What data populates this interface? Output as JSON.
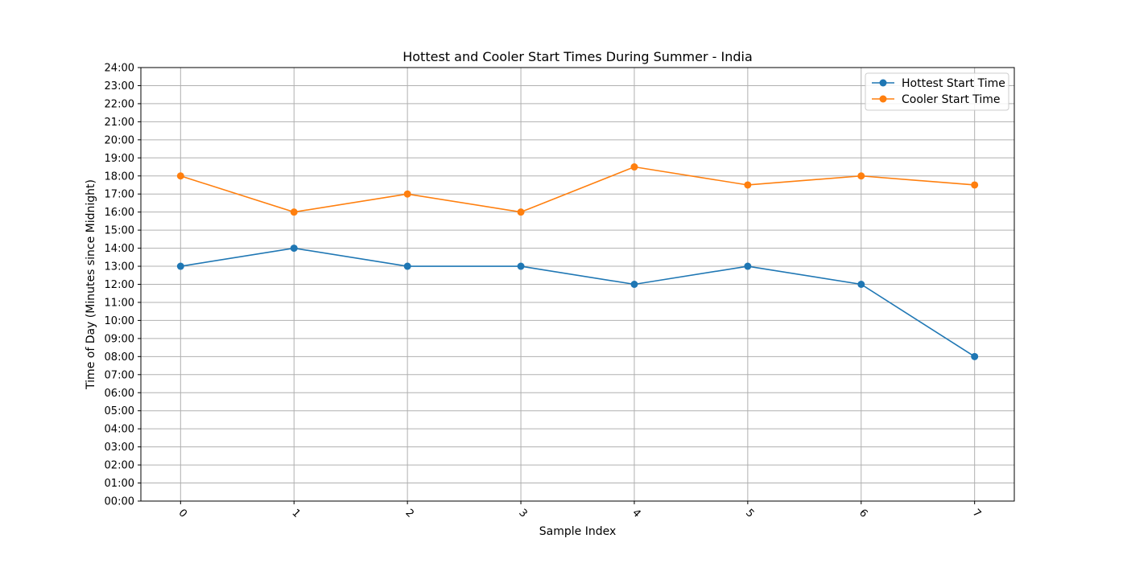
{
  "chart_data": {
    "type": "line",
    "title": "Hottest and Cooler Start Times During Summer - India",
    "xlabel": "Sample Index",
    "ylabel": "Time of Day (Minutes since Midnight)",
    "x": [
      0,
      1,
      2,
      3,
      4,
      5,
      6,
      7
    ],
    "x_tick_labels": [
      "0",
      "1",
      "2",
      "3",
      "4",
      "5",
      "6",
      "7"
    ],
    "xlim": [
      -0.35,
      7.35
    ],
    "ylim": [
      "00:00",
      "24:00"
    ],
    "y_tick_labels": [
      "00:00",
      "01:00",
      "02:00",
      "03:00",
      "04:00",
      "05:00",
      "06:00",
      "07:00",
      "08:00",
      "09:00",
      "10:00",
      "11:00",
      "12:00",
      "13:00",
      "14:00",
      "15:00",
      "16:00",
      "17:00",
      "18:00",
      "19:00",
      "20:00",
      "21:00",
      "22:00",
      "23:00",
      "24:00"
    ],
    "grid": true,
    "legend_position": "top-right",
    "series": [
      {
        "name": "Hottest Start Time",
        "color": "#1f77b4",
        "values": [
          "13:00",
          "14:00",
          "13:00",
          "13:00",
          "12:00",
          "13:00",
          "12:00",
          "08:00"
        ]
      },
      {
        "name": "Cooler Start Time",
        "color": "#ff7f0e",
        "values": [
          "18:00",
          "16:00",
          "17:00",
          "16:00",
          "18:30",
          "17:30",
          "18:00",
          "17:30"
        ]
      }
    ]
  }
}
